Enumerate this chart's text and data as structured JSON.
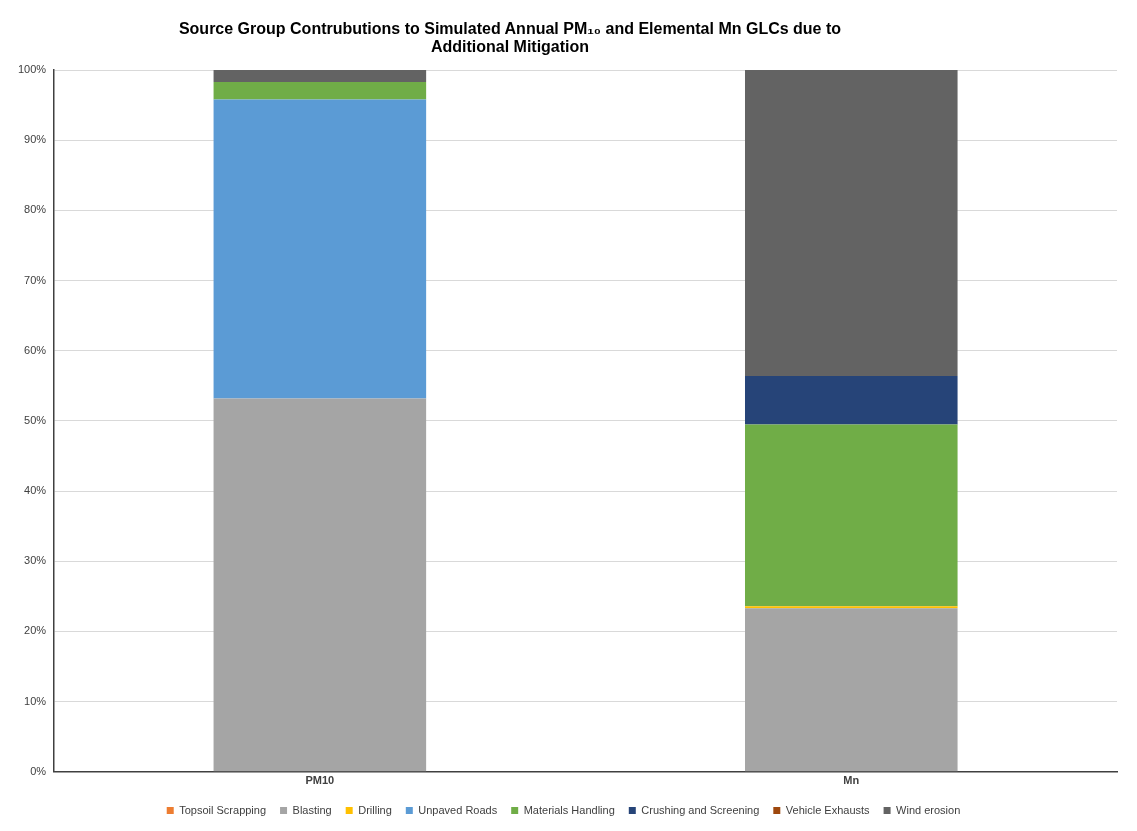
{
  "chart_data": {
    "type": "bar",
    "stacked": true,
    "title": "Source Group Contrubutions to Simulated Annual PM₁₀ and Elemental Mn GLCs due to Additional Mitigation",
    "categories": [
      "PM10",
      "Mn"
    ],
    "series": [
      {
        "name": "Topsoil Scrapping",
        "color": "#ed7d31",
        "values": [
          0,
          0
        ]
      },
      {
        "name": "Blasting",
        "color": "#a5a5a5",
        "values": [
          53.2,
          23.3
        ]
      },
      {
        "name": "Drilling",
        "color": "#ffc000",
        "values": [
          0,
          0.3
        ]
      },
      {
        "name": "Unpaved Roads",
        "color": "#5b9bd5",
        "values": [
          42.6,
          0
        ]
      },
      {
        "name": "Materials Handling",
        "color": "#70ad47",
        "values": [
          2.5,
          25.9
        ]
      },
      {
        "name": "Crushing and Screening",
        "color": "#264478",
        "values": [
          0,
          6.9
        ]
      },
      {
        "name": "Vehicle Exhausts",
        "color": "#9e480e",
        "values": [
          0,
          0
        ]
      },
      {
        "name": "Wind erosion",
        "color": "#636363",
        "values": [
          1.7,
          43.6
        ]
      }
    ],
    "ylim": [
      0,
      100
    ],
    "yticks": [
      {
        "value": 0,
        "label": "0%"
      },
      {
        "value": 10,
        "label": "10%"
      },
      {
        "value": 20,
        "label": "20%"
      },
      {
        "value": 30,
        "label": "30%"
      },
      {
        "value": 40,
        "label": "40%"
      },
      {
        "value": 50,
        "label": "50%"
      },
      {
        "value": 60,
        "label": "60%"
      },
      {
        "value": 70,
        "label": "70%"
      },
      {
        "value": 80,
        "label": "80%"
      },
      {
        "value": 90,
        "label": "90%"
      },
      {
        "value": 100,
        "label": "100%"
      }
    ],
    "grid": "y",
    "legend": "bottom"
  }
}
